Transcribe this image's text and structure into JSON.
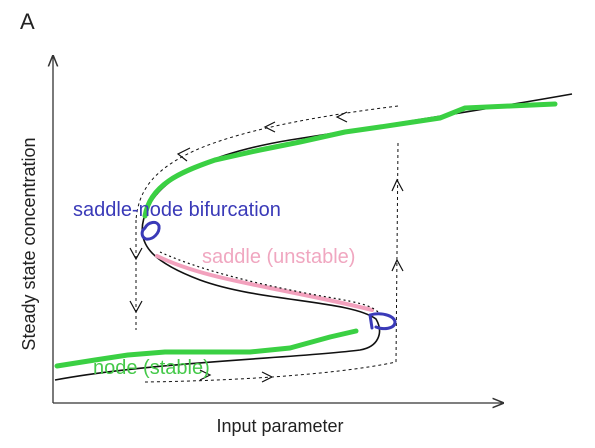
{
  "panel_label": "A",
  "x_axis_label": "Input parameter",
  "y_axis_label": "Steady state concentration",
  "annotations": {
    "saddle_node": "saddle-node bifurcation",
    "saddle": "saddle (unstable)",
    "node": "node (stable)"
  },
  "colors": {
    "axes": "#333333",
    "black_curve": "#111111",
    "stable_green": "#3ad043",
    "saddle_pink": "#f2a1bd",
    "bifurcation_blue": "#3a3ab8",
    "hysteresis_path": "#111111"
  }
}
